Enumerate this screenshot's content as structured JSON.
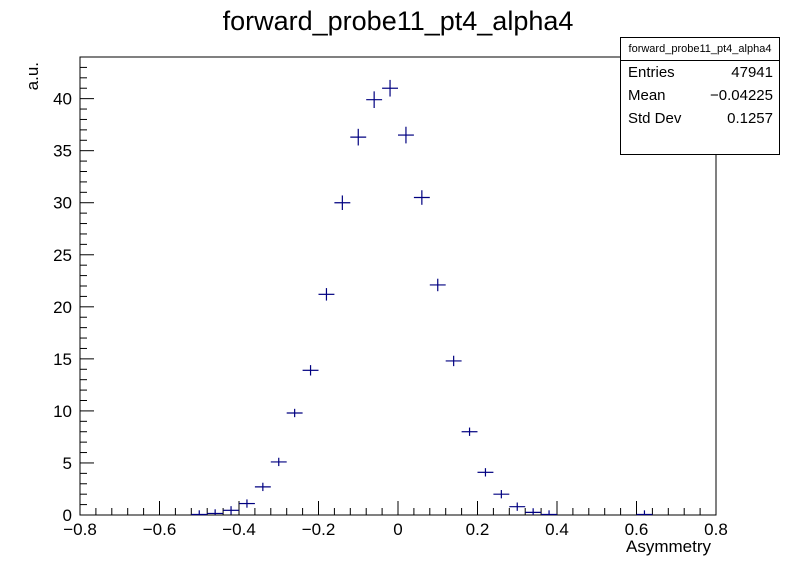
{
  "title": "forward_probe11_pt4_alpha4",
  "stats": {
    "name": "forward_probe11_pt4_alpha4",
    "entries_label": "Entries",
    "entries_value": "47941",
    "mean_label": "Mean",
    "mean_value": "−0.04225",
    "stddev_label": "Std Dev",
    "stddev_value": "0.1257"
  },
  "chart_data": {
    "type": "scatter",
    "title": "forward_probe11_pt4_alpha4",
    "xlabel": "Asymmetry",
    "ylabel": "a.u.",
    "xlim": [
      -0.8,
      0.8
    ],
    "ylim": [
      0,
      44
    ],
    "x_ticks": [
      -0.8,
      -0.6,
      -0.4,
      -0.2,
      0,
      0.2,
      0.4,
      0.6,
      0.8
    ],
    "x_tick_labels": [
      "−0.8",
      "−0.6",
      "−0.4",
      "−0.2",
      "0",
      "0.2",
      "0.4",
      "0.6",
      "0.8"
    ],
    "y_ticks": [
      0,
      5,
      10,
      15,
      20,
      25,
      30,
      35,
      40
    ],
    "y_tick_labels": [
      "0",
      "5",
      "10",
      "15",
      "20",
      "25",
      "30",
      "35",
      "40"
    ],
    "bin_width": 0.04,
    "points": [
      {
        "x": -0.5,
        "y": 0.05,
        "ey": 0.1
      },
      {
        "x": -0.46,
        "y": 0.15,
        "ey": 0.1
      },
      {
        "x": -0.42,
        "y": 0.45,
        "ey": 0.1
      },
      {
        "x": -0.38,
        "y": 1.1,
        "ey": 0.15
      },
      {
        "x": -0.34,
        "y": 2.7,
        "ey": 0.2
      },
      {
        "x": -0.3,
        "y": 5.1,
        "ey": 0.3
      },
      {
        "x": -0.26,
        "y": 9.8,
        "ey": 0.4
      },
      {
        "x": -0.22,
        "y": 13.9,
        "ey": 0.5
      },
      {
        "x": -0.18,
        "y": 21.2,
        "ey": 0.6
      },
      {
        "x": -0.14,
        "y": 30.0,
        "ey": 0.7
      },
      {
        "x": -0.1,
        "y": 36.3,
        "ey": 0.8
      },
      {
        "x": -0.06,
        "y": 39.9,
        "ey": 0.8
      },
      {
        "x": -0.02,
        "y": 41.0,
        "ey": 0.8
      },
      {
        "x": 0.02,
        "y": 36.5,
        "ey": 0.8
      },
      {
        "x": 0.06,
        "y": 30.5,
        "ey": 0.7
      },
      {
        "x": 0.1,
        "y": 22.1,
        "ey": 0.6
      },
      {
        "x": 0.14,
        "y": 14.8,
        "ey": 0.5
      },
      {
        "x": 0.18,
        "y": 8.0,
        "ey": 0.4
      },
      {
        "x": 0.22,
        "y": 4.1,
        "ey": 0.25
      },
      {
        "x": 0.26,
        "y": 2.0,
        "ey": 0.2
      },
      {
        "x": 0.3,
        "y": 0.8,
        "ey": 0.1
      },
      {
        "x": 0.34,
        "y": 0.25,
        "ey": 0.1
      },
      {
        "x": 0.38,
        "y": 0.05,
        "ey": 0.1
      },
      {
        "x": 0.62,
        "y": 0.05,
        "ey": 0.1
      }
    ],
    "marker_color": "#000080",
    "grid": false,
    "legend": "top-right stats box"
  }
}
